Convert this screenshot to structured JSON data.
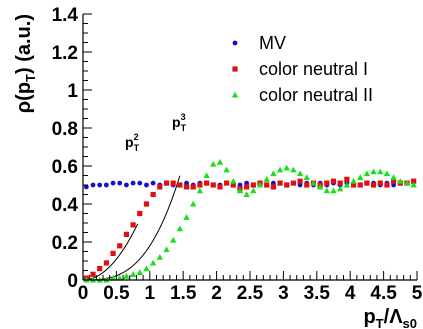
{
  "chart_data": {
    "type": "scatter",
    "xlabel": {
      "main": "p",
      "sub": "T",
      "sep": "/",
      "main2": "Λ",
      "sub2": "s0"
    },
    "ylabel": {
      "pre": "ρ(p",
      "sub": "T",
      "post": ") (a.u.)"
    },
    "xlim": [
      0,
      5
    ],
    "ylim": [
      0,
      1.4
    ],
    "x_ticks": [
      "0",
      "0.5",
      "1",
      "1.5",
      "2",
      "2.5",
      "3",
      "3.5",
      "4",
      "4.5",
      "5"
    ],
    "y_ticks": [
      "0",
      "0.2",
      "0.4",
      "0.6",
      "0.8",
      "1",
      "1.2",
      "1.4"
    ],
    "legend_position": "top-right",
    "series": [
      {
        "name": "MV",
        "color": "#1010d8",
        "marker": "circle",
        "x": [
          0.05,
          0.15,
          0.25,
          0.35,
          0.45,
          0.55,
          0.65,
          0.75,
          0.85,
          0.95,
          1.05,
          1.15,
          1.25,
          1.35,
          1.45,
          1.55,
          1.65,
          1.75,
          1.85,
          1.95,
          2.05,
          2.15,
          2.25,
          2.35,
          2.45,
          2.55,
          2.65,
          2.75,
          2.85,
          2.95,
          3.05,
          3.15,
          3.25,
          3.35,
          3.45,
          3.55,
          3.65,
          3.75,
          3.85,
          3.95,
          4.05,
          4.15,
          4.25,
          4.35,
          4.45,
          4.55,
          4.65,
          4.75,
          4.85,
          4.95
        ],
        "y": [
          0.49,
          0.5,
          0.5,
          0.5,
          0.51,
          0.51,
          0.5,
          0.51,
          0.51,
          0.5,
          0.51,
          0.5,
          0.51,
          0.5,
          0.5,
          0.51,
          0.5,
          0.51,
          0.51,
          0.5,
          0.5,
          0.51,
          0.5,
          0.5,
          0.51,
          0.5,
          0.51,
          0.5,
          0.51,
          0.51,
          0.5,
          0.51,
          0.5,
          0.51,
          0.5,
          0.51,
          0.5,
          0.51,
          0.5,
          0.51,
          0.51,
          0.5,
          0.51,
          0.51,
          0.5,
          0.51,
          0.5,
          0.51,
          0.51,
          0.52
        ]
      },
      {
        "name": "color neutral I",
        "color": "#e01010",
        "marker": "square",
        "x": [
          0.05,
          0.15,
          0.25,
          0.35,
          0.45,
          0.55,
          0.65,
          0.75,
          0.85,
          0.95,
          1.05,
          1.15,
          1.25,
          1.35,
          1.45,
          1.55,
          1.65,
          1.75,
          1.85,
          1.95,
          2.05,
          2.15,
          2.25,
          2.35,
          2.45,
          2.55,
          2.65,
          2.75,
          2.85,
          2.95,
          3.05,
          3.15,
          3.25,
          3.35,
          3.45,
          3.55,
          3.65,
          3.75,
          3.85,
          3.95,
          4.05,
          4.15,
          4.25,
          4.35,
          4.45,
          4.55,
          4.65,
          4.75,
          4.85,
          4.95
        ],
        "y": [
          0.01,
          0.03,
          0.06,
          0.09,
          0.14,
          0.18,
          0.24,
          0.29,
          0.35,
          0.4,
          0.45,
          0.49,
          0.51,
          0.51,
          0.5,
          0.49,
          0.49,
          0.5,
          0.51,
          0.5,
          0.49,
          0.51,
          0.5,
          0.48,
          0.49,
          0.5,
          0.51,
          0.5,
          0.49,
          0.51,
          0.5,
          0.51,
          0.52,
          0.5,
          0.51,
          0.5,
          0.51,
          0.52,
          0.51,
          0.53,
          0.5,
          0.5,
          0.51,
          0.5,
          0.51,
          0.5,
          0.52,
          0.51,
          0.51,
          0.52
        ]
      },
      {
        "name": "color neutral II",
        "color": "#18e018",
        "marker": "triangle",
        "x": [
          0.05,
          0.15,
          0.25,
          0.35,
          0.45,
          0.55,
          0.65,
          0.75,
          0.85,
          0.95,
          1.05,
          1.15,
          1.25,
          1.35,
          1.45,
          1.55,
          1.65,
          1.75,
          1.85,
          1.95,
          2.05,
          2.15,
          2.25,
          2.35,
          2.45,
          2.55,
          2.65,
          2.75,
          2.85,
          2.95,
          3.05,
          3.15,
          3.25,
          3.35,
          3.45,
          3.55,
          3.65,
          3.75,
          3.85,
          3.95,
          4.05,
          4.15,
          4.25,
          4.35,
          4.45,
          4.55,
          4.65,
          4.75,
          4.85,
          4.95
        ],
        "y": [
          0.0,
          0.0,
          0.0,
          0.0,
          0.01,
          0.01,
          0.02,
          0.03,
          0.04,
          0.06,
          0.09,
          0.12,
          0.16,
          0.21,
          0.27,
          0.33,
          0.4,
          0.47,
          0.55,
          0.61,
          0.62,
          0.58,
          0.52,
          0.47,
          0.45,
          0.47,
          0.5,
          0.53,
          0.56,
          0.58,
          0.59,
          0.58,
          0.56,
          0.54,
          0.51,
          0.49,
          0.47,
          0.47,
          0.48,
          0.5,
          0.52,
          0.54,
          0.56,
          0.57,
          0.57,
          0.56,
          0.54,
          0.52,
          0.51,
          0.5
        ]
      }
    ],
    "curves": [
      {
        "label": {
          "main": "p",
          "sup": "2",
          "sub": "T"
        },
        "coefficient": 0.44,
        "power": 2,
        "x_range": [
          0,
          0.82
        ]
      },
      {
        "label": {
          "main": "p",
          "sup": "3",
          "sub": "T"
        },
        "coefficient": 0.18,
        "power": 3,
        "x_range": [
          0,
          1.45
        ]
      }
    ]
  }
}
